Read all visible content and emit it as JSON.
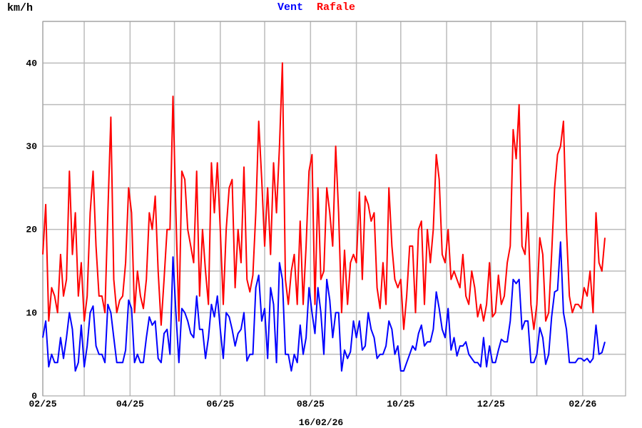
{
  "chart_data": {
    "type": "line",
    "unit_label": "km/h",
    "legend": [
      "Vent",
      "Rafale"
    ],
    "legend_placement": "top-center",
    "footer_date": "16/02/26",
    "ylim": [
      0,
      45
    ],
    "y_ticks": [
      0,
      10,
      20,
      30,
      40
    ],
    "y_grid_step": 5,
    "xlim": [
      "2025-02-01",
      "2026-03-02"
    ],
    "x_tick_labels": [
      {
        "date": "2025-02-01",
        "label": "02/25"
      },
      {
        "date": "2025-04-01",
        "label": "04/25"
      },
      {
        "date": "2025-06-01",
        "label": "06/25"
      },
      {
        "date": "2025-08-01",
        "label": "08/25"
      },
      {
        "date": "2025-10-01",
        "label": "10/25"
      },
      {
        "date": "2025-12-01",
        "label": "12/25"
      },
      {
        "date": "2026-02-01",
        "label": "02/26"
      }
    ],
    "x_grid": [
      "2025-02-01",
      "2025-03-01",
      "2025-04-01",
      "2025-05-01",
      "2025-06-01",
      "2025-07-01",
      "2025-08-01",
      "2025-09-01",
      "2025-10-01",
      "2025-11-01",
      "2025-12-01",
      "2026-01-01",
      "2026-02-01"
    ],
    "grid": true,
    "colors": {
      "Vent": "#0000ff",
      "Rafale": "#ff0000",
      "grid": "#bbbbbb"
    },
    "x": [
      "2025-02-01",
      "2025-02-03",
      "2025-02-05",
      "2025-02-07",
      "2025-02-09",
      "2025-02-11",
      "2025-02-13",
      "2025-02-15",
      "2025-02-17",
      "2025-02-19",
      "2025-02-21",
      "2025-02-23",
      "2025-02-25",
      "2025-02-27",
      "2025-03-01",
      "2025-03-03",
      "2025-03-05",
      "2025-03-07",
      "2025-03-09",
      "2025-03-11",
      "2025-03-13",
      "2025-03-15",
      "2025-03-17",
      "2025-03-19",
      "2025-03-21",
      "2025-03-23",
      "2025-03-25",
      "2025-03-27",
      "2025-03-29",
      "2025-03-31",
      "2025-04-02",
      "2025-04-04",
      "2025-04-06",
      "2025-04-08",
      "2025-04-10",
      "2025-04-12",
      "2025-04-14",
      "2025-04-16",
      "2025-04-18",
      "2025-04-20",
      "2025-04-22",
      "2025-04-24",
      "2025-04-26",
      "2025-04-28",
      "2025-04-30",
      "2025-05-02",
      "2025-05-04",
      "2025-05-06",
      "2025-05-08",
      "2025-05-10",
      "2025-05-12",
      "2025-05-14",
      "2025-05-16",
      "2025-05-18",
      "2025-05-20",
      "2025-05-22",
      "2025-05-24",
      "2025-05-26",
      "2025-05-28",
      "2025-05-30",
      "2025-06-01",
      "2025-06-03",
      "2025-06-05",
      "2025-06-07",
      "2025-06-09",
      "2025-06-11",
      "2025-06-13",
      "2025-06-15",
      "2025-06-17",
      "2025-06-19",
      "2025-06-21",
      "2025-06-23",
      "2025-06-25",
      "2025-06-27",
      "2025-06-29",
      "2025-07-01",
      "2025-07-03",
      "2025-07-05",
      "2025-07-07",
      "2025-07-09",
      "2025-07-11",
      "2025-07-13",
      "2025-07-15",
      "2025-07-17",
      "2025-07-19",
      "2025-07-21",
      "2025-07-23",
      "2025-07-25",
      "2025-07-27",
      "2025-07-29",
      "2025-07-31",
      "2025-08-02",
      "2025-08-04",
      "2025-08-06",
      "2025-08-08",
      "2025-08-10",
      "2025-08-12",
      "2025-08-14",
      "2025-08-16",
      "2025-08-18",
      "2025-08-20",
      "2025-08-22",
      "2025-08-24",
      "2025-08-26",
      "2025-08-28",
      "2025-08-30",
      "2025-09-01",
      "2025-09-03",
      "2025-09-05",
      "2025-09-07",
      "2025-09-09",
      "2025-09-11",
      "2025-09-13",
      "2025-09-15",
      "2025-09-17",
      "2025-09-19",
      "2025-09-21",
      "2025-09-23",
      "2025-09-25",
      "2025-09-27",
      "2025-09-29",
      "2025-10-01",
      "2025-10-03",
      "2025-10-05",
      "2025-10-07",
      "2025-10-09",
      "2025-10-11",
      "2025-10-13",
      "2025-10-15",
      "2025-10-17",
      "2025-10-19",
      "2025-10-21",
      "2025-10-23",
      "2025-10-25",
      "2025-10-27",
      "2025-10-29",
      "2025-10-31",
      "2025-11-02",
      "2025-11-04",
      "2025-11-06",
      "2025-11-08",
      "2025-11-10",
      "2025-11-12",
      "2025-11-14",
      "2025-11-16",
      "2025-11-18",
      "2025-11-20",
      "2025-11-22",
      "2025-11-24",
      "2025-11-26",
      "2025-11-28",
      "2025-11-30",
      "2025-12-02",
      "2025-12-04",
      "2025-12-06",
      "2025-12-08",
      "2025-12-10",
      "2025-12-12",
      "2025-12-14",
      "2025-12-16",
      "2025-12-18",
      "2025-12-20",
      "2025-12-22",
      "2025-12-24",
      "2025-12-26",
      "2025-12-28",
      "2025-12-30",
      "2026-01-01",
      "2026-01-03",
      "2026-01-05",
      "2026-01-07",
      "2026-01-09",
      "2026-01-11",
      "2026-01-13",
      "2026-01-15",
      "2026-01-17",
      "2026-01-19",
      "2026-01-21",
      "2026-01-23",
      "2026-01-25",
      "2026-01-27",
      "2026-01-29",
      "2026-01-31",
      "2026-02-02",
      "2026-02-04",
      "2026-02-06",
      "2026-02-08",
      "2026-02-10",
      "2026-02-12",
      "2026-02-14",
      "2026-02-16"
    ],
    "series": [
      {
        "name": "Vent",
        "values": [
          7,
          9,
          3.5,
          5,
          4,
          4,
          7,
          4.5,
          7,
          10,
          8,
          3,
          4,
          8.5,
          3.5,
          6,
          10,
          10.8,
          6,
          5,
          5,
          4,
          11,
          10,
          7,
          4,
          4,
          4,
          5.5,
          11.5,
          10.5,
          4,
          5,
          4,
          4,
          7,
          9.5,
          8.5,
          9,
          4.5,
          4,
          7.5,
          8,
          5,
          16.7,
          10,
          4,
          10.5,
          10,
          9,
          7.5,
          7,
          12,
          8,
          8,
          4.5,
          7,
          11,
          9.5,
          12,
          8,
          4.5,
          10,
          9.5,
          8,
          6,
          7.5,
          8,
          10,
          4.2,
          5,
          5,
          13,
          14.5,
          9,
          10.5,
          4.5,
          13,
          11,
          4,
          16,
          14,
          5,
          5,
          3,
          5,
          4,
          8.5,
          5,
          7,
          13,
          10,
          7.5,
          13,
          10,
          5,
          14,
          11.5,
          7,
          10,
          10,
          3,
          5.5,
          4.5,
          5.3,
          9,
          7,
          9,
          5.5,
          6,
          10,
          8,
          7,
          4.5,
          5,
          5,
          6,
          9,
          8,
          5,
          6,
          3,
          3,
          4,
          5,
          6,
          5.5,
          7.5,
          8.5,
          6,
          6.5,
          6.5,
          8,
          12.5,
          10.5,
          8,
          7,
          10.5,
          5.5,
          7,
          4.8,
          6,
          6,
          6.5,
          5,
          4.5,
          4,
          4,
          3.5,
          7,
          3.5,
          6,
          4,
          4,
          5.5,
          6.8,
          6.5,
          6.5,
          9,
          14,
          13.5,
          14,
          8,
          9,
          9,
          4,
          4,
          5,
          8.2,
          7,
          3.8,
          5,
          9.5,
          12.5,
          12.7,
          18.5,
          10,
          8,
          4,
          4,
          4,
          4.5,
          4.5,
          4.2,
          4.5,
          4,
          4.5,
          8.5,
          5,
          5.2,
          6.5
        ]
      },
      {
        "name": "Rafale",
        "values": [
          17,
          23,
          9,
          13,
          12,
          10,
          17,
          12,
          14,
          27,
          17,
          22,
          12,
          16,
          9,
          12,
          22,
          27,
          18,
          12,
          12,
          10,
          22,
          33.5,
          14,
          10,
          11.5,
          12,
          16,
          25,
          22,
          10,
          15,
          12,
          10.5,
          14,
          22,
          20,
          24,
          15,
          8.5,
          14,
          20,
          20,
          36,
          22,
          9,
          27,
          26,
          20,
          18,
          16,
          27,
          12,
          20,
          15,
          11,
          28,
          22,
          28,
          20,
          11,
          20,
          25,
          26,
          13,
          20,
          16,
          27.5,
          14,
          12.5,
          14.5,
          22,
          33,
          26,
          18,
          25,
          17,
          28,
          22,
          30,
          40,
          14,
          11,
          15,
          17,
          11,
          21,
          11,
          18,
          27,
          29,
          11,
          25,
          14,
          15,
          25,
          22,
          18,
          30,
          22,
          10,
          17.5,
          11,
          16,
          17,
          16,
          24.5,
          14,
          24,
          23,
          21,
          22,
          13,
          10.5,
          16,
          11,
          25,
          18,
          14,
          13,
          14,
          8,
          12,
          18,
          18,
          10,
          20,
          21,
          11,
          20,
          16,
          20,
          29,
          26,
          17,
          16,
          20,
          14,
          15,
          14,
          13,
          17,
          12,
          11,
          15,
          13,
          9.5,
          11,
          9,
          11,
          16,
          9.5,
          10,
          14.5,
          11,
          12,
          16,
          18,
          32,
          28.5,
          35,
          18,
          17,
          22,
          11,
          8,
          11,
          19,
          17,
          9,
          10,
          17,
          25,
          29,
          30,
          33,
          20,
          12,
          10,
          11,
          11,
          10.5,
          13,
          12,
          15,
          10,
          22,
          16,
          15,
          19
        ]
      }
    ]
  }
}
